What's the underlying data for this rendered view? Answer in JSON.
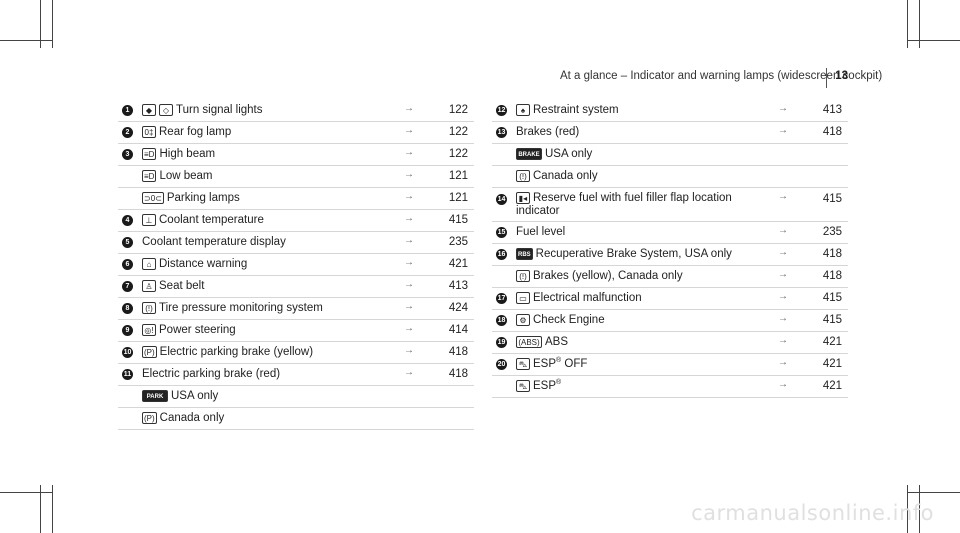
{
  "header": {
    "title": "At a glance – Indicator and warning lamps (widescreen cockpit)",
    "page": "13"
  },
  "arrow_glyph": "→",
  "left_rows": [
    {
      "num": "1",
      "icons": [
        "◆",
        "◇"
      ],
      "label": "Turn signal lights",
      "ref": "122"
    },
    {
      "num": "2",
      "icons": [
        "0‡"
      ],
      "label": "Rear fog lamp",
      "ref": "122"
    },
    {
      "num": "3",
      "icons": [
        "≡D"
      ],
      "label": "High beam",
      "ref": "122"
    },
    {
      "num": "",
      "icons": [
        "≡D"
      ],
      "label": "Low beam",
      "ref": "121"
    },
    {
      "num": "",
      "icons": [
        "⊃0⊂"
      ],
      "label": "Parking lamps",
      "ref": "121"
    },
    {
      "num": "4",
      "icons": [
        "⊥"
      ],
      "label": "Coolant temperature",
      "ref": "415"
    },
    {
      "num": "5",
      "icons": [],
      "label": "Coolant temperature display",
      "ref": "235"
    },
    {
      "num": "6",
      "icons": [
        "⌂"
      ],
      "label": "Distance warning",
      "ref": "421"
    },
    {
      "num": "7",
      "icons": [
        "♙"
      ],
      "label": "Seat belt",
      "ref": "413"
    },
    {
      "num": "8",
      "icons": [
        "(!)"
      ],
      "label": "Tire pressure monitoring system",
      "ref": "424"
    },
    {
      "num": "9",
      "icons": [
        "◎!"
      ],
      "label": "Power steering",
      "ref": "414"
    },
    {
      "num": "10",
      "icons": [
        "(P)"
      ],
      "label": "Electric parking brake (yellow)",
      "ref": "418"
    },
    {
      "num": "11",
      "icons": [],
      "label": "Electric parking brake (red)",
      "ref": "418"
    },
    {
      "num": "",
      "icons": [
        "PARK"
      ],
      "dark": true,
      "label": "USA only",
      "ref": ""
    },
    {
      "num": "",
      "icons": [
        "(P)"
      ],
      "label": "Canada only",
      "ref": ""
    }
  ],
  "right_rows": [
    {
      "num": "12",
      "icons": [
        "♠"
      ],
      "label": "Restraint system",
      "ref": "413"
    },
    {
      "num": "13",
      "icons": [],
      "label": "Brakes (red)",
      "ref": "418"
    },
    {
      "num": "",
      "icons": [
        "BRAKE"
      ],
      "dark": true,
      "label": "USA only",
      "ref": ""
    },
    {
      "num": "",
      "icons": [
        "(!)"
      ],
      "label": "Canada only",
      "ref": ""
    },
    {
      "num": "14",
      "icons": [
        "▮◂"
      ],
      "label": "Reserve fuel with fuel filler flap location",
      "label2": "indicator",
      "ref": "415",
      "tall": true
    },
    {
      "num": "15",
      "icons": [],
      "label": "Fuel level",
      "ref": "235"
    },
    {
      "num": "16",
      "icons": [
        "RBS"
      ],
      "dark": true,
      "label": "Recuperative Brake System, USA only",
      "ref": "418"
    },
    {
      "num": "",
      "icons": [
        "(!)"
      ],
      "label": "Brakes (yellow), Canada only",
      "ref": "418"
    },
    {
      "num": "17",
      "icons": [
        "▭"
      ],
      "label": "Electrical malfunction",
      "ref": "415"
    },
    {
      "num": "18",
      "icons": [
        "⚙"
      ],
      "label": "Check Engine",
      "ref": "415"
    },
    {
      "num": "19",
      "icons": [
        "(ABS)"
      ],
      "label": "ABS",
      "ref": "421"
    },
    {
      "num": "20",
      "icons": [
        "⛍"
      ],
      "label": "ESP",
      "sup": "®",
      "label_tail": " OFF",
      "ref": "421"
    },
    {
      "num": "",
      "icons": [
        "⛍"
      ],
      "label": "ESP",
      "sup": "®",
      "label_tail": "",
      "ref": "421"
    }
  ],
  "watermark": "carmanualsonline.info"
}
